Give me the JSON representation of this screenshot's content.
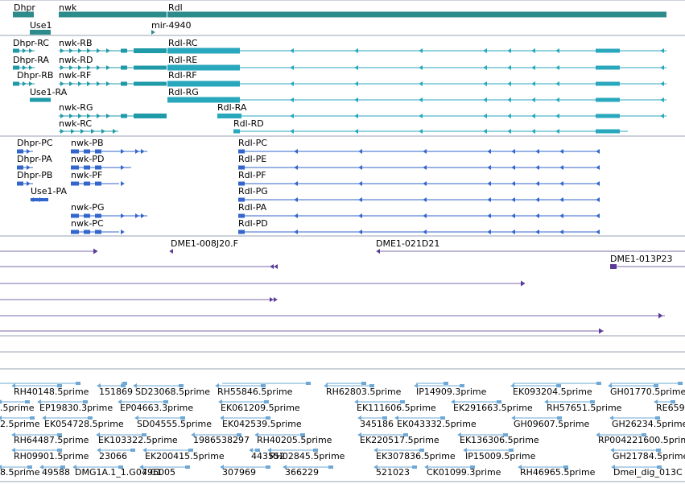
{
  "colors": {
    "gene": "#2e8b8b",
    "transcript_dark": "#1f9aa8",
    "transcript_light": "#29a7bd",
    "cds_blue": "#3366cc",
    "clone_purple": "#5c3c99",
    "clone_line": "#7a6aa8",
    "est_blue": "#6ea8d6",
    "separator": "#9aa3b0",
    "text": "#000000"
  },
  "tracks": {
    "genes": [
      {
        "label": "Dhpr"
      },
      {
        "label": "Use1"
      },
      {
        "label": "nwk"
      },
      {
        "label": "mir-4940"
      },
      {
        "label": "Rdl"
      }
    ],
    "transcripts_a": [
      {
        "label": "Dhpr-RC"
      },
      {
        "label": "Dhpr-RA"
      },
      {
        "label": "Dhpr-RB"
      },
      {
        "label": "Use1-RA"
      },
      {
        "label": "nwk-RB"
      },
      {
        "label": "nwk-RD"
      },
      {
        "label": "nwk-RF"
      },
      {
        "label": "nwk-RG"
      },
      {
        "label": "nwk-RC"
      },
      {
        "label": "Rdl-RC"
      },
      {
        "label": "Rdl-RE"
      },
      {
        "label": "Rdl-RF"
      },
      {
        "label": "Rdl-RG"
      },
      {
        "label": "Rdl-RA"
      },
      {
        "label": "Rdl-RD"
      }
    ],
    "transcripts_b": [
      {
        "label": "Dhpr-PC"
      },
      {
        "label": "Dhpr-PA"
      },
      {
        "label": "Dhpr-PB"
      },
      {
        "label": "Use1-PA"
      },
      {
        "label": "nwk-PB"
      },
      {
        "label": "nwk-PD"
      },
      {
        "label": "nwk-PF"
      },
      {
        "label": "nwk-PG"
      },
      {
        "label": "nwk-PC"
      },
      {
        "label": "Rdl-PC"
      },
      {
        "label": "Rdl-PE"
      },
      {
        "label": "Rdl-PF"
      },
      {
        "label": "Rdl-PG"
      },
      {
        "label": "Rdl-PA"
      },
      {
        "label": "Rdl-PD"
      }
    ],
    "clones": [
      {
        "label": "DME1-008J20.F"
      },
      {
        "label": "DME1-021D21"
      },
      {
        "label": "DME1-013P23"
      }
    ],
    "ests": [
      [
        "RH40148.5prime",
        "151869",
        "SD23068.5prime",
        "RH55846.5prime",
        "RH62803.5prime",
        "IP14909.3prime",
        "EK093204.5prime",
        "GH01770.5prime"
      ],
      [
        ".5prime",
        "EP19830.3prime",
        "EP04663.3prime",
        "EK061209.5prime",
        "EK111606.5prime",
        "EK291663.5prime",
        "RH57651.5prime",
        "RE659"
      ],
      [
        "2.5prime",
        "EK054728.5prime",
        "SD04555.5prime",
        "EK042539.5prime",
        "345186",
        "EK043332.5prime",
        "GH09607.5prime",
        "GH26234.5prime"
      ],
      [
        "RH64487.5prime",
        "EK103322.5prime",
        "1986538297",
        "RH40205.5prime",
        "EK220517.5prime",
        "EK136306.5prime",
        "RP004221600.5prime"
      ],
      [
        "RH09901.5prime",
        "23066",
        "EK200415.5prime",
        "443552",
        "RH02845.5prime",
        "EK307836.5prime",
        "IP15009.5prime",
        "GH21784.5prime"
      ],
      [
        "8.5prime",
        "49588",
        "DMG1A.1_1.G07.C1",
        "496005",
        "307969",
        "366229",
        "521023",
        "CK01099.3prime",
        "RH46965.5prime",
        "Dmel_dig_013C"
      ]
    ]
  }
}
